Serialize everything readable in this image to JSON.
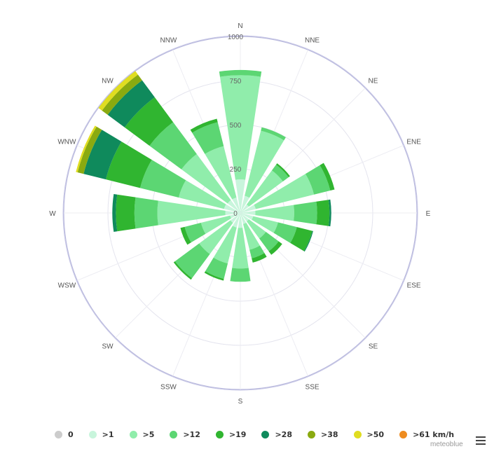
{
  "chart_data": {
    "type": "wind-rose",
    "radial_max": 1000,
    "radial_ticks": [
      "0",
      "250",
      "500",
      "750",
      "1000"
    ],
    "directions": [
      "N",
      "NNE",
      "NE",
      "ENE",
      "E",
      "ESE",
      "SE",
      "SSE",
      "S",
      "SSW",
      "SW",
      "WSW",
      "W",
      "WNW",
      "NW",
      "NNW"
    ],
    "series": [
      {
        "name": "0",
        "color": "#cccccc",
        "values": [
          0,
          0,
          0,
          0,
          0,
          0,
          0,
          0,
          0,
          0,
          0,
          0,
          0,
          0,
          0,
          0
        ]
      },
      {
        "name": ">1",
        "color": "#c8f5dc",
        "values": [
          190,
          100,
          60,
          90,
          85,
          75,
          60,
          65,
          85,
          85,
          70,
          60,
          85,
          95,
          90,
          90
        ]
      },
      {
        "name": ">5",
        "color": "#90edab",
        "values": [
          590,
          380,
          240,
          340,
          220,
          145,
          120,
          150,
          230,
          210,
          220,
          170,
          385,
          265,
          325,
          300
        ]
      },
      {
        "name": ">12",
        "color": "#5cd673",
        "values": [
          30,
          20,
          40,
          95,
          130,
          110,
          90,
          50,
          75,
          90,
          170,
          95,
          130,
          225,
          225,
          140
        ]
      },
      {
        "name": ">19",
        "color": "#30b530",
        "values": [
          0,
          0,
          10,
          25,
          70,
          90,
          25,
          25,
          0,
          10,
          10,
          25,
          105,
          200,
          175,
          20
        ]
      },
      {
        "name": ">28",
        "color": "#0f8a5c",
        "values": [
          0,
          0,
          0,
          0,
          10,
          5,
          0,
          0,
          0,
          0,
          0,
          0,
          20,
          130,
          120,
          0
        ]
      },
      {
        "name": ">38",
        "color": "#8aaa10",
        "values": [
          0,
          0,
          0,
          0,
          0,
          0,
          0,
          0,
          0,
          0,
          0,
          0,
          0,
          35,
          40,
          0
        ]
      },
      {
        "name": ">50",
        "color": "#e0dd20",
        "values": [
          0,
          0,
          0,
          0,
          0,
          0,
          0,
          0,
          0,
          0,
          0,
          0,
          0,
          10,
          25,
          0
        ]
      },
      {
        "name": ">61 km/h",
        "color": "#ee8c20",
        "values": [
          0,
          0,
          0,
          0,
          0,
          0,
          0,
          0,
          0,
          0,
          0,
          0,
          0,
          0,
          0,
          0
        ]
      }
    ],
    "grid": true
  },
  "credit": "meteoblue",
  "menu": {
    "icon": "hamburger-icon"
  }
}
